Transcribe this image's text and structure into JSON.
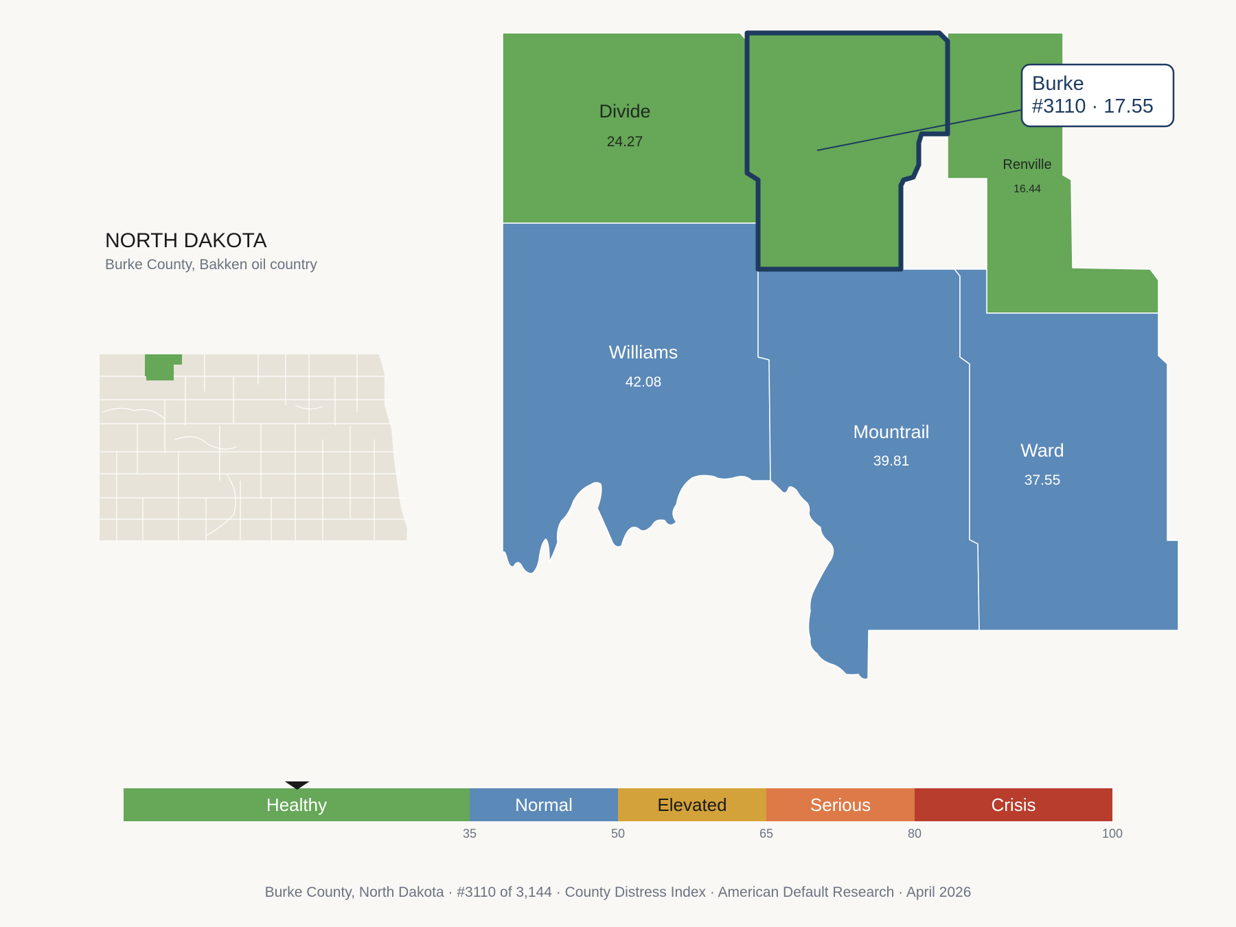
{
  "state": {
    "title": "NORTH DAKOTA",
    "subtitle": "Burke County, Bakken oil country"
  },
  "counties": {
    "divide": {
      "name": "Divide",
      "value": "24.27",
      "color": "#66a758",
      "text_color": "#1f2a1f"
    },
    "burke": {
      "name": "Burke",
      "value": "17.55",
      "color": "#66a758"
    },
    "renville": {
      "name": "Renville",
      "value": "16.44",
      "color": "#66a758",
      "text_color": "#1f2a1f"
    },
    "williams": {
      "name": "Williams",
      "value": "42.08",
      "color": "#5b89b8",
      "text_color": "#ffffff"
    },
    "mountrail": {
      "name": "Mountrail",
      "value": "39.81",
      "color": "#5b89b8",
      "text_color": "#ffffff"
    },
    "ward": {
      "name": "Ward",
      "value": "37.55",
      "color": "#5b89b8",
      "text_color": "#ffffff"
    }
  },
  "highlight": {
    "outline_color": "#1e3a5f",
    "tooltip_line1": "Burke",
    "tooltip_line2": "#3110 · 17.55"
  },
  "inset": {
    "base_color": "#e8e3d8",
    "highlight_color": "#66a758"
  },
  "scale": {
    "min": 0,
    "max": 100,
    "marker_value": 17.55,
    "bands": [
      {
        "label": "Healthy",
        "from": 0,
        "to": 35,
        "color": "#66a758",
        "text_color": "#ffffff"
      },
      {
        "label": "Normal",
        "from": 35,
        "to": 50,
        "color": "#5b89b8",
        "text_color": "#ffffff"
      },
      {
        "label": "Elevated",
        "from": 50,
        "to": 65,
        "color": "#d4a23a",
        "text_color": "#1a1a1a"
      },
      {
        "label": "Serious",
        "from": 65,
        "to": 80,
        "color": "#dd7a48",
        "text_color": "#ffffff"
      },
      {
        "label": "Crisis",
        "from": 80,
        "to": 100,
        "color": "#b83d2c",
        "text_color": "#ffffff"
      }
    ],
    "ticks": [
      "35",
      "50",
      "65",
      "80",
      "100"
    ]
  },
  "footer": {
    "county": "Burke County, North Dakota",
    "rank": "#3110 of 3,144",
    "index": "County Distress Index",
    "source": "American Default Research",
    "date": "April 2026"
  }
}
